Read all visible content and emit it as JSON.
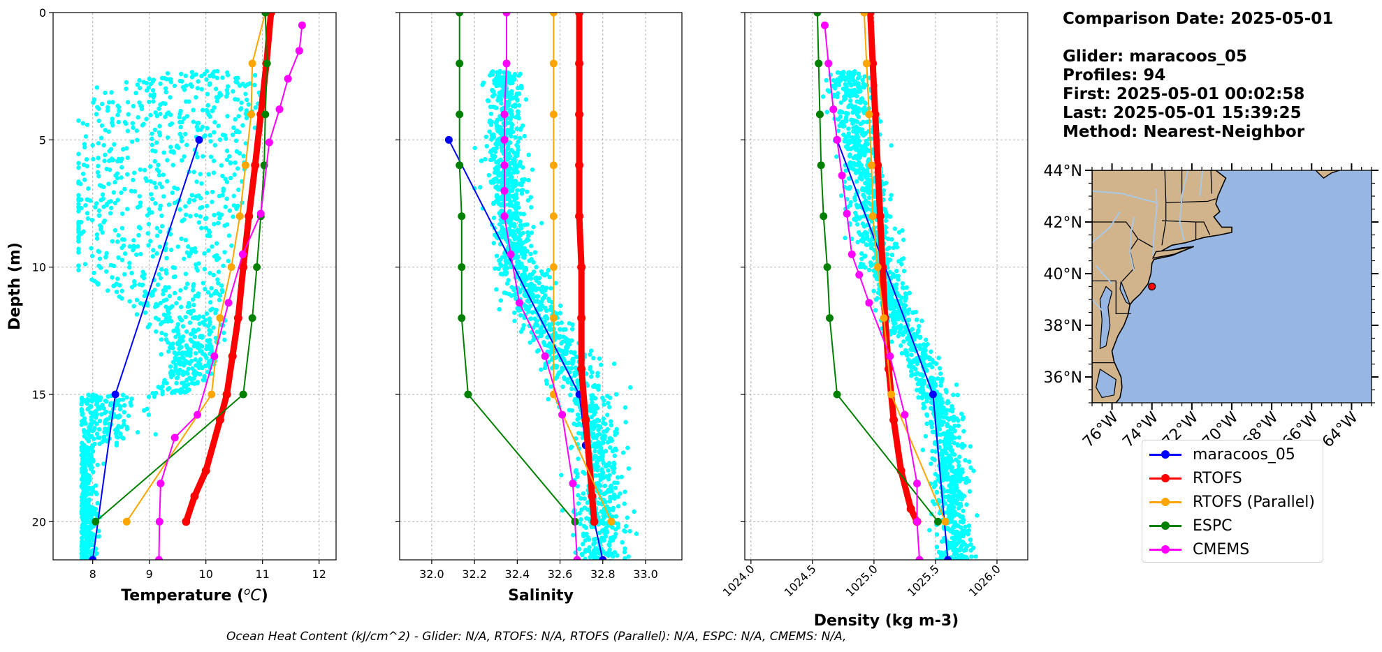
{
  "info": {
    "comparison_date": "Comparison Date: 2025-05-01",
    "glider": "Glider: maracoos_05",
    "profiles": "Profiles: 94",
    "first": "First: 2025-05-01 00:02:58",
    "last": "Last: 2025-05-01 15:39:25",
    "method": "Method: Nearest-Neighbor"
  },
  "footer": "Ocean Heat Content (kJ/cm^2) - Glider: N/A,  RTOFS: N/A,  RTOFS (Parallel): N/A,  ESPC: N/A,  CMEMS: N/A,",
  "legend": [
    {
      "label": "maracoos_05",
      "color": "#0000ff"
    },
    {
      "label": "RTOFS",
      "color": "#ff0000"
    },
    {
      "label": "RTOFS (Parallel)",
      "color": "#ffa500"
    },
    {
      "label": "ESPC",
      "color": "#008000"
    },
    {
      "label": "CMEMS",
      "color": "#ff00ff"
    }
  ],
  "colors": {
    "glider_scatter": "#00ffff",
    "land": "#d2b48c",
    "ocean": "#97b6e1",
    "rivers": "#aac8e6"
  },
  "chart_data": [
    {
      "type": "line",
      "xlabel": "Temperature (°C)",
      "ylabel": "Depth (m)",
      "xlim": [
        7.3,
        12.3
      ],
      "ylim": [
        21.5,
        0
      ],
      "xticks": [
        8,
        9,
        10,
        11,
        12
      ],
      "yticks": [
        0,
        5,
        10,
        15,
        20
      ],
      "grid": true,
      "scatter_model": [
        [
          0,
          0
        ],
        [
          2.5,
          0.45
        ],
        [
          3,
          0.8
        ],
        [
          5,
          0.9
        ],
        [
          8,
          1.0
        ],
        [
          10,
          1.0
        ],
        [
          11.5,
          0.5
        ],
        [
          13,
          0.15
        ],
        [
          15,
          0.08
        ],
        [
          18,
          0.05
        ],
        [
          21.5,
          0.05
        ]
      ],
      "series": [
        {
          "name": "maracoos_05",
          "color": "#0000ff",
          "width": 2,
          "x": [
            9.88,
            8.4,
            8.0
          ],
          "y": [
            5,
            15,
            21.5
          ]
        },
        {
          "name": "RTOFS",
          "color": "#ff0000",
          "width": 9,
          "x": [
            11.15,
            11.07,
            10.97,
            10.87,
            10.76,
            10.66,
            10.57,
            10.47,
            10.37,
            10.25,
            10.0,
            9.8,
            9.65
          ],
          "y": [
            0,
            2,
            4,
            6,
            8,
            10,
            12,
            13.5,
            15,
            16,
            18,
            19,
            20
          ]
        },
        {
          "name": "RTOFS (Parallel)",
          "color": "#ffa500",
          "width": 2,
          "x": [
            11.05,
            10.82,
            10.8,
            10.7,
            10.6,
            10.45,
            10.25,
            10.1,
            8.6
          ],
          "y": [
            0,
            2,
            4,
            6,
            8,
            10,
            12,
            15,
            20
          ]
        },
        {
          "name": "ESPC",
          "color": "#008000",
          "width": 2,
          "x": [
            11.05,
            11.08,
            11.05,
            11.03,
            10.97,
            10.9,
            10.82,
            10.66,
            8.05
          ],
          "y": [
            0,
            2,
            4,
            6,
            8,
            10,
            12,
            15,
            20
          ]
        },
        {
          "name": "CMEMS",
          "color": "#ff00ff",
          "width": 2,
          "x": [
            11.7,
            11.65,
            11.45,
            11.3,
            11.12,
            10.97,
            10.65,
            10.4,
            10.15,
            9.85,
            9.45,
            9.2,
            9.18,
            9.17
          ],
          "y": [
            0.5,
            1.5,
            2.6,
            3.8,
            5.1,
            7.9,
            9.5,
            11.4,
            13.5,
            15.8,
            16.7,
            18.5,
            20,
            21.5
          ]
        }
      ]
    },
    {
      "type": "line",
      "xlabel": "Salinity",
      "ylabel": "",
      "xlim": [
        31.85,
        33.17
      ],
      "ylim": [
        21.5,
        0
      ],
      "xticks": [
        32.0,
        32.2,
        32.4,
        32.6,
        32.8,
        33.0
      ],
      "yticks": [
        0,
        5,
        10,
        15,
        20
      ],
      "grid": true,
      "scatter_model": [
        [
          2.3,
          32.34
        ],
        [
          5,
          32.34
        ],
        [
          8,
          32.36
        ],
        [
          10,
          32.4
        ],
        [
          12,
          32.5
        ],
        [
          13.5,
          32.62
        ],
        [
          15,
          32.72
        ],
        [
          17,
          32.78
        ],
        [
          20,
          32.8
        ],
        [
          21.5,
          32.8
        ]
      ],
      "series": [
        {
          "name": "maracoos_05",
          "color": "#0000ff",
          "width": 2,
          "x": [
            32.08,
            32.69,
            32.72,
            32.76,
            32.8
          ],
          "y": [
            5,
            15,
            17,
            20,
            21.5
          ]
        },
        {
          "name": "RTOFS",
          "color": "#ff0000",
          "width": 9,
          "x": [
            32.69,
            32.69,
            32.69,
            32.69,
            32.69,
            32.7,
            32.7,
            32.7,
            32.72,
            32.75,
            32.76
          ],
          "y": [
            0,
            2,
            4,
            6,
            8,
            10,
            12,
            14,
            16,
            19,
            20
          ]
        },
        {
          "name": "RTOFS (Parallel)",
          "color": "#ffa500",
          "width": 2,
          "x": [
            32.57,
            32.57,
            32.57,
            32.57,
            32.57,
            32.57,
            32.57,
            32.57,
            32.84
          ],
          "y": [
            0,
            2,
            4,
            6,
            8,
            10,
            12,
            15,
            20
          ]
        },
        {
          "name": "ESPC",
          "color": "#008000",
          "width": 2,
          "x": [
            32.13,
            32.13,
            32.13,
            32.13,
            32.14,
            32.14,
            32.14,
            32.17,
            32.67
          ],
          "y": [
            0,
            2,
            4,
            6,
            8,
            10,
            12,
            15,
            20
          ]
        },
        {
          "name": "CMEMS",
          "color": "#ff00ff",
          "width": 2,
          "x": [
            32.35,
            32.35,
            32.34,
            32.34,
            32.34,
            32.34,
            32.34,
            32.37,
            32.41,
            32.53,
            32.61,
            32.66,
            32.68
          ],
          "y": [
            0,
            2,
            4,
            5,
            6,
            7,
            8,
            9.5,
            11.4,
            13.5,
            15.8,
            18.5,
            21.5
          ]
        }
      ]
    },
    {
      "type": "line",
      "xlabel": "Density (kg m-3)",
      "ylabel": "",
      "xlim": [
        1023.95,
        1026.25
      ],
      "ylim": [
        21.5,
        0
      ],
      "xticks": [
        1024.0,
        1024.5,
        1025.0,
        1025.5,
        1026.0
      ],
      "yticks": [
        0,
        5,
        10,
        15,
        20
      ],
      "grid": true,
      "scatter_model": [
        [
          2.3,
          1024.78
        ],
        [
          5,
          1024.88
        ],
        [
          8,
          1024.98
        ],
        [
          10,
          1025.05
        ],
        [
          12,
          1025.2
        ],
        [
          13.5,
          1025.35
        ],
        [
          15,
          1025.5
        ],
        [
          17,
          1025.6
        ],
        [
          20,
          1025.65
        ],
        [
          21.5,
          1025.67
        ]
      ],
      "series": [
        {
          "name": "maracoos_05",
          "color": "#0000ff",
          "width": 2,
          "x": [
            1024.7,
            1025.48,
            1025.6
          ],
          "y": [
            5,
            15,
            21.5
          ]
        },
        {
          "name": "RTOFS",
          "color": "#ff0000",
          "width": 9,
          "x": [
            1024.97,
            1024.99,
            1025.01,
            1025.03,
            1025.05,
            1025.07,
            1025.09,
            1025.12,
            1025.16,
            1025.22,
            1025.3,
            1025.35
          ],
          "y": [
            0,
            2,
            4,
            6,
            8,
            10,
            12,
            14,
            16,
            18,
            19.5,
            20
          ]
        },
        {
          "name": "RTOFS (Parallel)",
          "color": "#ffa500",
          "width": 2,
          "x": [
            1024.92,
            1024.94,
            1024.96,
            1024.98,
            1024.99,
            1025.03,
            1025.08,
            1025.14,
            1025.58
          ],
          "y": [
            0,
            2,
            4,
            6,
            8,
            10,
            12,
            15,
            20
          ]
        },
        {
          "name": "ESPC",
          "color": "#008000",
          "width": 2,
          "x": [
            1024.54,
            1024.55,
            1024.56,
            1024.57,
            1024.59,
            1024.62,
            1024.64,
            1024.7,
            1025.52
          ],
          "y": [
            0,
            2,
            4,
            6,
            8,
            10,
            12,
            15,
            20
          ]
        },
        {
          "name": "CMEMS",
          "color": "#ff00ff",
          "width": 2,
          "x": [
            1024.6,
            1024.63,
            1024.67,
            1024.7,
            1024.74,
            1024.78,
            1024.82,
            1024.88,
            1024.96,
            1025.13,
            1025.25,
            1025.35,
            1025.35,
            1025.37
          ],
          "y": [
            0.5,
            2,
            3.8,
            5,
            6.4,
            7.9,
            9.5,
            10.3,
            11.4,
            13.5,
            15.8,
            18.5,
            20,
            21.5
          ]
        }
      ]
    },
    {
      "type": "map",
      "xlim": [
        -77,
        -63
      ],
      "ylim": [
        35,
        44
      ],
      "xticklabels": [
        "76°W",
        "74°W",
        "72°W",
        "70°W",
        "68°W",
        "66°W",
        "64°W"
      ],
      "xticks": [
        -76,
        -74,
        -72,
        -70,
        -68,
        -66,
        -64
      ],
      "yticklabels": [
        "36°N",
        "38°N",
        "40°N",
        "42°N",
        "44°N"
      ],
      "yticks": [
        36,
        38,
        40,
        42,
        44
      ],
      "marker": {
        "lon": -74.0,
        "lat": 39.5,
        "color": "#ff0000"
      }
    }
  ]
}
